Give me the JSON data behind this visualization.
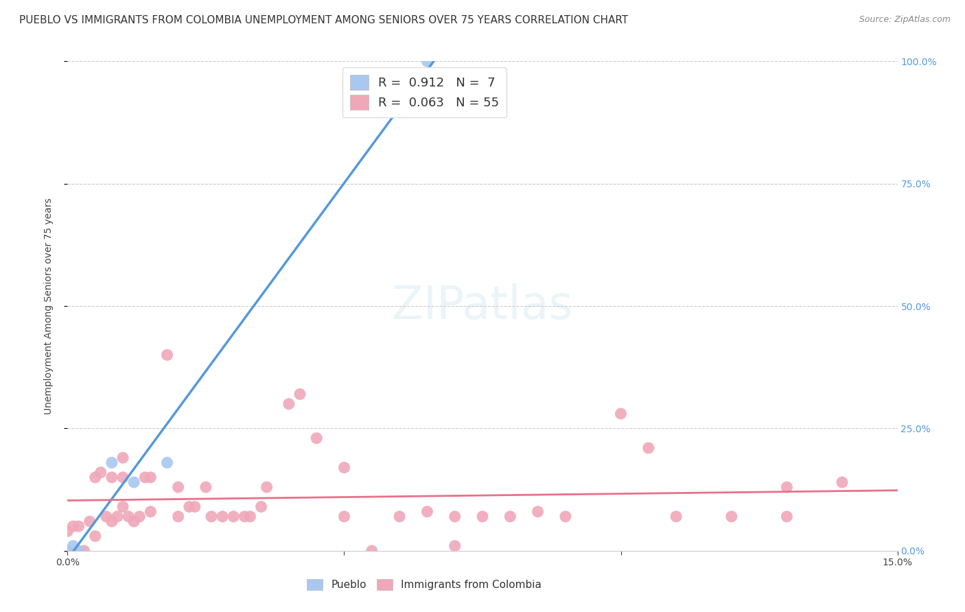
{
  "title": "PUEBLO VS IMMIGRANTS FROM COLOMBIA UNEMPLOYMENT AMONG SENIORS OVER 75 YEARS CORRELATION CHART",
  "source": "Source: ZipAtlas.com",
  "ylabel": "Unemployment Among Seniors over 75 years",
  "watermark": "ZIPatlas",
  "xlim": [
    0.0,
    0.15
  ],
  "ylim": [
    0.0,
    1.0
  ],
  "right_yticks": [
    0.0,
    0.25,
    0.5,
    0.75,
    1.0
  ],
  "right_yticklabels": [
    "0.0%",
    "25.0%",
    "50.0%",
    "75.0%",
    "100.0%"
  ],
  "xticks": [
    0.0,
    0.05,
    0.1,
    0.15
  ],
  "xticklabels": [
    "0.0%",
    "",
    "",
    "15.0%"
  ],
  "pueblo_R": 0.912,
  "pueblo_N": 7,
  "colombia_R": 0.063,
  "colombia_N": 55,
  "pueblo_color": "#a8c8f0",
  "colombia_color": "#f0a8b8",
  "pueblo_line_color": "#5599dd",
  "colombia_line_color": "#e8708a",
  "pueblo_scatter": [
    [
      0.0,
      0.0
    ],
    [
      0.001,
      0.01
    ],
    [
      0.002,
      0.0
    ],
    [
      0.008,
      0.18
    ],
    [
      0.012,
      0.14
    ],
    [
      0.018,
      0.18
    ],
    [
      0.065,
      1.0
    ]
  ],
  "colombia_scatter": [
    [
      0.0,
      0.04
    ],
    [
      0.001,
      0.05
    ],
    [
      0.002,
      0.05
    ],
    [
      0.003,
      0.0
    ],
    [
      0.004,
      0.06
    ],
    [
      0.005,
      0.03
    ],
    [
      0.005,
      0.15
    ],
    [
      0.006,
      0.16
    ],
    [
      0.007,
      0.07
    ],
    [
      0.008,
      0.15
    ],
    [
      0.008,
      0.06
    ],
    [
      0.009,
      0.07
    ],
    [
      0.01,
      0.09
    ],
    [
      0.01,
      0.15
    ],
    [
      0.01,
      0.19
    ],
    [
      0.011,
      0.07
    ],
    [
      0.012,
      0.06
    ],
    [
      0.013,
      0.07
    ],
    [
      0.014,
      0.15
    ],
    [
      0.015,
      0.15
    ],
    [
      0.015,
      0.08
    ],
    [
      0.018,
      0.4
    ],
    [
      0.02,
      0.13
    ],
    [
      0.02,
      0.07
    ],
    [
      0.022,
      0.09
    ],
    [
      0.023,
      0.09
    ],
    [
      0.025,
      0.13
    ],
    [
      0.026,
      0.07
    ],
    [
      0.028,
      0.07
    ],
    [
      0.03,
      0.07
    ],
    [
      0.032,
      0.07
    ],
    [
      0.033,
      0.07
    ],
    [
      0.035,
      0.09
    ],
    [
      0.036,
      0.13
    ],
    [
      0.04,
      0.3
    ],
    [
      0.042,
      0.32
    ],
    [
      0.045,
      0.23
    ],
    [
      0.05,
      0.07
    ],
    [
      0.05,
      0.17
    ],
    [
      0.055,
      0.0
    ],
    [
      0.06,
      0.07
    ],
    [
      0.065,
      0.08
    ],
    [
      0.07,
      0.07
    ],
    [
      0.07,
      0.01
    ],
    [
      0.075,
      0.07
    ],
    [
      0.08,
      0.07
    ],
    [
      0.085,
      0.08
    ],
    [
      0.09,
      0.07
    ],
    [
      0.1,
      0.28
    ],
    [
      0.105,
      0.21
    ],
    [
      0.11,
      0.07
    ],
    [
      0.12,
      0.07
    ],
    [
      0.13,
      0.07
    ],
    [
      0.13,
      0.13
    ],
    [
      0.14,
      0.14
    ]
  ],
  "grid_color": "#cccccc",
  "background_color": "#ffffff",
  "title_fontsize": 11,
  "axis_label_fontsize": 10,
  "tick_fontsize": 10,
  "legend_upper_fontsize": 13,
  "legend_lower_fontsize": 11,
  "source_fontsize": 9,
  "watermark_fontsize": 48,
  "watermark_color": "#c8e0f0",
  "watermark_alpha": 0.35
}
